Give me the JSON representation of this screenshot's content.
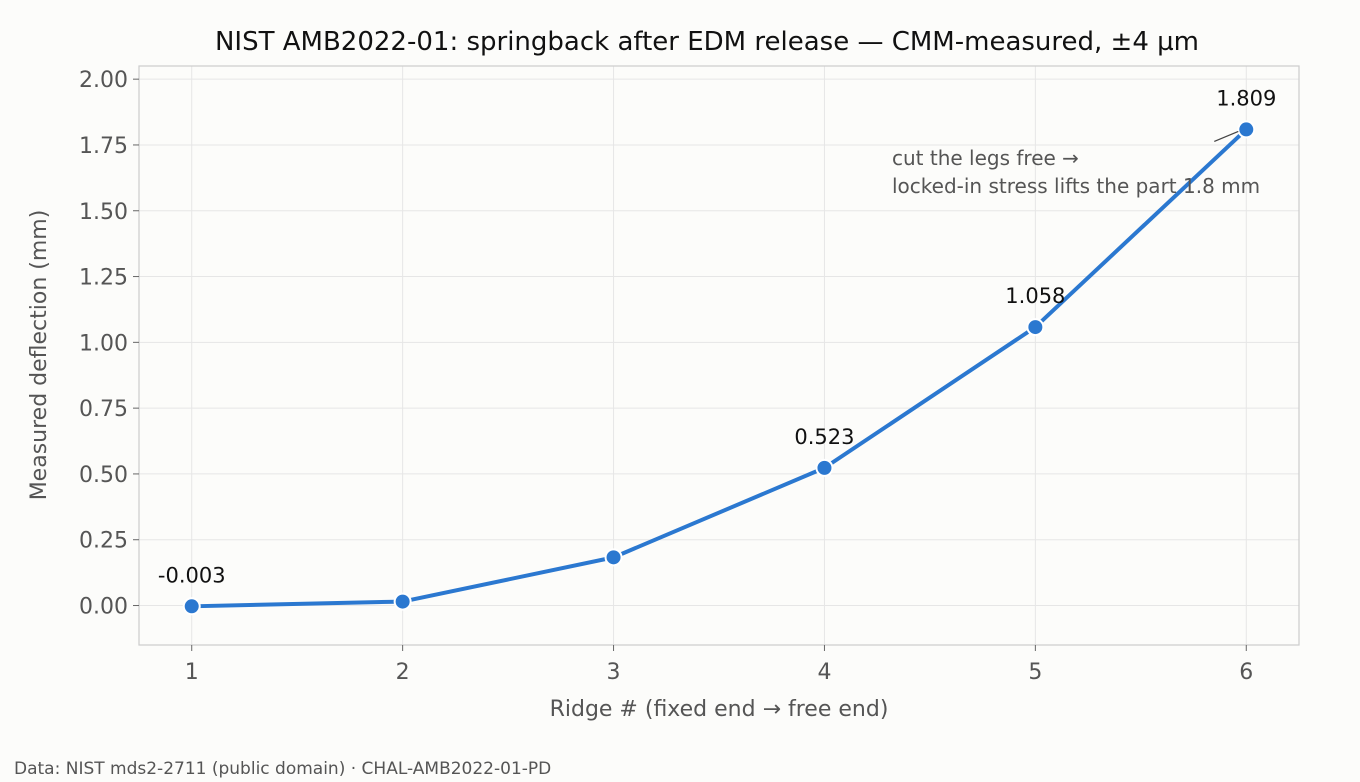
{
  "chart_data": {
    "type": "line",
    "title": "NIST AMB2022-01: springback after EDM release — CMM-measured, ±4 µm",
    "xlabel": "Ridge # (fixed end → free end)",
    "ylabel": "Measured deflection (mm)",
    "x": [
      1,
      2,
      3,
      4,
      5,
      6
    ],
    "series": [
      {
        "values": [
          -0.003,
          0.015,
          0.183,
          0.523,
          1.058,
          1.809
        ]
      }
    ],
    "data_labels": [
      {
        "x": 1,
        "text": "-0.003"
      },
      {
        "x": 4,
        "text": "0.523"
      },
      {
        "x": 5,
        "text": "1.058"
      },
      {
        "x": 6,
        "text": "1.809"
      }
    ],
    "xticks": [
      1,
      2,
      3,
      4,
      5,
      6
    ],
    "yticks": [
      "0.00",
      "0.25",
      "0.50",
      "0.75",
      "1.00",
      "1.25",
      "1.50",
      "1.75",
      "2.00"
    ],
    "xlim": [
      0.75,
      6.25
    ],
    "ylim": [
      -0.15,
      2.05
    ],
    "grid": true,
    "annotation": {
      "lines": [
        "cut the legs free →",
        "locked-in stress lifts the part 1.8 mm"
      ],
      "points_to_x": 6
    },
    "line_color": "#2b78d0",
    "marker_color": "#2b78d0"
  },
  "footer": {
    "source": "Data: NIST mds2-2711 (public domain) · CHAL-AMB2022-01-PD"
  }
}
